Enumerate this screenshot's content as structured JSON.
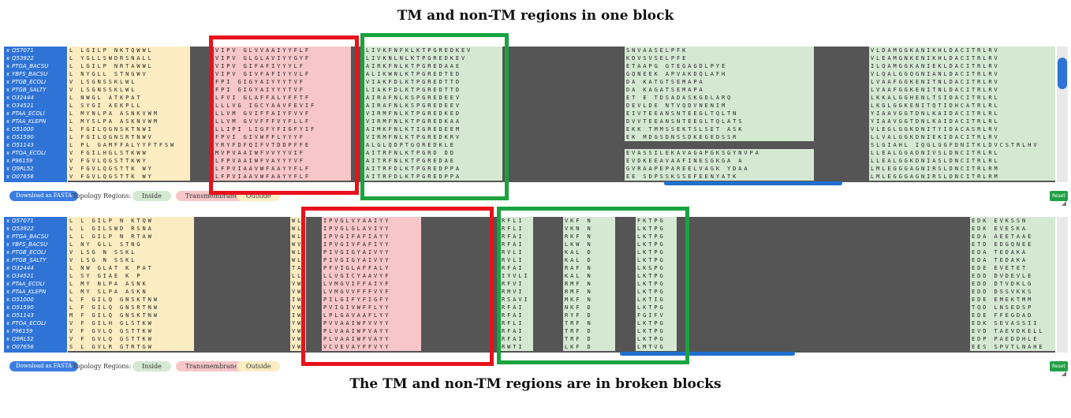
{
  "annotations": {
    "top_title": "TM and non-TM regions in one block",
    "bottom_title": "The TM and non-TM regions are in broken blocks"
  },
  "sequence_ids": [
    "Q57071",
    "Q53922",
    "PTGA_BACSU",
    "YBFS_BACSU",
    "PTGB_ECOLI",
    "PTGB_SALTY",
    "O32444",
    "O34521",
    "PTAA_ECOLI",
    "PTAA_KLEPN",
    "O51000",
    "O51590",
    "O51143",
    "PTOA_ECOLI",
    "P96159",
    "Q9RL52",
    "O07656"
  ],
  "row_marker": "x",
  "panel_top": {
    "segments_text": {
      "left_out": [
        "L LGILP NKTQWWL",
        "L YGLLSWDRSNALL",
        "L LGILP NRTAWWL",
        "L NYGLL STNGWV",
        "V LSGNSSKLWL",
        "V LSGNSSKLWL",
        "L NWGL ATKPAT",
        "L SYGI AEKPLL",
        "L MYNLPA ASNKVWM",
        "L MYSLPA ASKNVWM",
        "L FGILQGNSKTNWI",
        "L FGILQGNSRTNWV",
        "L PL GAMFFALYYFTFSW",
        "V FGILHGLSTKWW",
        "V FGVLQGSTTKWY",
        "V FGVLQGSTTK WY",
        "V FGVLQGSTTK WY"
      ],
      "tm": [
        "VIPV GLVVAAIYYFLF",
        "VIPV GLGLAVIYYGYF",
        "VIPV GIFAFIYYYLF",
        "VIPV GIVFAFIYYVLF",
        "FPI GIGYAIYYYTVF",
        "FPI GIGYAIYYYTVF",
        "LFVI GLAFFALYFFTF",
        "LLLVG IGCYAAVFEVIF",
        "LLVM GVIFFAIYFVVF",
        "LLVM GVVFFFVYFLLF",
        "LLIPI LIGFYFIGFYIF",
        "FPVI GIVWFFLYYYF",
        "YRYFDFQIFVTDDPFFE",
        "MVPVAAIWFVVYYVIF",
        "LFPVAAIWFVAYYYVF",
        "LFPVIAAVWFAAYYFLF",
        "LFPVIAAVWFAAYYFLF"
      ],
      "in_a": [
        "LIVKFNFKLKTPGREDKEV",
        "LIVKNLNLKTPGREDKEV",
        "AIRKFNLKTPGREDAAE",
        "ALIKWNLKTPGREDTED",
        "VIAKFDLKTPGREDTTD",
        "LIAKFDLKTPGREDTTD",
        "AIRAFNLKSPGREDEEV",
        "AIRAFNLKSPGREDEEV",
        "VIRMFNLKTPGREDKED",
        "VIRMFNLKTPGREDKAA",
        "AIMKFNLKTIGREDEEM",
        "VIRMFNLKTPGREDKRV",
        "ALGLQDPTGQREDKLE",
        "AITRFNLKTPGRD DD",
        "AITRFNLKTPGREDAE",
        "AITRFDLKTPGREDPPA",
        "AITRFDLKTPGREDPPA"
      ],
      "in_b": [
        "SNVAASELPFK",
        "KDVSVSELPFE",
        "ETAAPG GTEGAGDLPYE",
        "GQNEEK APVAKDQLAFH",
        "DA KATGTSEMAPA",
        "DA KAGATSEMAPA",
        "ET E TDSADASKGDLARQ",
        "DEVLDE NTVQDVNENIM",
        "EIVTEEANSNTEEGLTQLTN",
        "DVVTEEANSNTEEGLTQLATS",
        "EKK TMMSSEKTSLSET ASK",
        "EK MDGSDNSSDKEGEDSSR",
        "",
        "EVASSILEKAVAGAPGKSGYNVPA",
        "EVDKEEAVAAFINESGKGA A",
        "GVRAAPEPAREELVAGK YDAA",
        "EE SDPSSKSSEFEENYATK"
      ],
      "in_c": [
        "VLDAMGGKANIKHLDACITRLRV",
        "VLEAMGNKENIKHLDACITRLRV",
        "ILQAMGGKANIEKLDACITRLRV",
        "VLQALGGQGNIANLDACITRLRV",
        "LVAAFGGKENITNLDACITRLRV",
        "LVAAFGGKENITNLDACITRLRV",
        "LKKALGGHENLTSIDACITRLRL",
        "LKGLGGKENITQTIDHCATRLRL",
        "YIAAVGGTDNLKAIDACITRLRL",
        "YIAAVGGTDNLKAIDACITRLRL",
        "VLEGLGGKDNITYIDACASRLRV",
        "LLVALGGKDNIEKIDACITRLRV",
        "SLGIAHL IQGLGGFDNITKLDVCSTRLHV",
        "LLEALGGADNIVSLDNCITRLRL",
        "LLEALGGKDNIASLDNCITRLRL",
        "LMLEGGGAGNIRSLDNCITRLRM",
        "LMLEGGGAGNIRSLDNCITRLRM"
      ]
    }
  },
  "panel_bottom": {
    "segments_text": {
      "left_out": [
        "L L GILP N KTQW",
        "L L GILSWD RSNA",
        "L L GILP N RTAW",
        "L NY GLL STNG",
        "V LSG N SSKL",
        "V LSG N SSKL",
        "L NW GLAT K PAT",
        "L SY GIAE K P",
        "L MY NLPA ASNK",
        "L MY SLPA ASKN",
        "L F GILQ GNSKTNW",
        "L F GILQ GNSRTNW",
        "M F GILQ GNSKTNW",
        "V F GILH GLSTKW",
        "V F GVLQ GSTTKW",
        "V F GVLQ GSTTKW",
        "S L GVLR GTRTGW"
      ],
      "mid_out": [
        "WL",
        "WL",
        "WL",
        "WV",
        "WL",
        "WL",
        "TA",
        "LL",
        "VW",
        "VW",
        "IW",
        "VW",
        "IW",
        "YW",
        "VW",
        "VW",
        "VW"
      ],
      "tm": [
        "IPVGLVYAAIYY",
        "IPVGLGLAVIYY",
        "IPVGIFAFIAYY",
        "IPVGIVFAFIYY",
        "PIVGIGYAIVYY",
        "PIVGIGYAIVYY",
        "PFVIGLAFFALY",
        "LLVGICYAAVYF",
        "LVMGVIFFAIYF",
        "LVMGVVFFFVYF",
        "PILGIFYFIGFY",
        "PVIGIVWFFLYY",
        "LPLGAVAAFLYY",
        "PVVAAIWFVVYY",
        "PLVAAIWFVAYY",
        "PLVAAIWFVAYY",
        "VCVEVAYFFVYY"
      ],
      "in_a": [
        "RFLI",
        "RFLI",
        "RFAI",
        "RFAI",
        "RVLI",
        "RVLI",
        "RFAI",
        "IYVLI",
        "RFVI",
        "RMVI",
        "RSAVI",
        "RFAI",
        "RFAI",
        "RFLI",
        "RFAI",
        "RFAI",
        "RWTI"
      ],
      "in_b": [
        "VKF N",
        "VKN N",
        "RKF N",
        "LKW N",
        "KAL D",
        "KAL D",
        "RAF N",
        "KAL N",
        "RMF N",
        "RMF N",
        "MKF N",
        "NKF D",
        "RYF D",
        "TRF N",
        "TRF D",
        "TRF D",
        "LKF D"
      ],
      "in_c": [
        "FKTPG",
        "LKTPG",
        "LKTPG",
        "LKTPG",
        "LKTPG",
        "LKTPG",
        "LKSPG",
        "LKTPG",
        "LKTPG",
        "LKTPG",
        "LKTIG",
        "LKTPG",
        "FGIFV",
        "LKTPG",
        "LKTPG",
        "LKTPG",
        "LMTVG"
      ],
      "in_d": [
        "EDK EVKSSN",
        "EDK EVESKA",
        "EDA AEETAAE",
        "ETD EDGQNEE",
        "EDA TEDAKA",
        "EDA TEDAKA",
        "EDE EVETET",
        "EDD DVDEVLE",
        "EDD DTVDKLG",
        "EDD DSSVKKS",
        "EDE EMEKTMM",
        "TQD LNSEDSP",
        "EDE FFEGDAD",
        "EDK SEVASSII",
        "EVD TAEVDKELL",
        "EDP PAEDDHLE",
        "EES SPVTLNAHE"
      ]
    }
  },
  "controls": {
    "download_label": "Download as FASTA",
    "topology_label": "Topology Regions:",
    "legend_inside": "Inside",
    "legend_transmembrane": "Transmembrane",
    "legend_outside": "Outside",
    "reset_label": "Reset"
  },
  "colors": {
    "gap": "#555555",
    "inside": "#d5e9d2",
    "transmembrane": "#f7c6c8",
    "outside": "#fbecc2",
    "highlight_red": "#e8111c",
    "highlight_green": "#1aa33e",
    "accent_blue": "#2f73d6"
  }
}
